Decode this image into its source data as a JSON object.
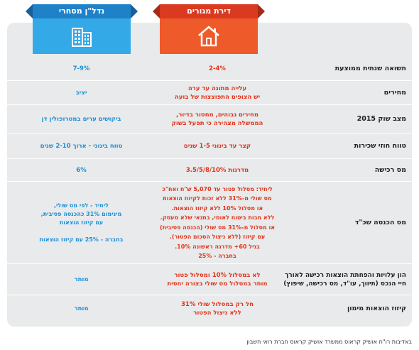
{
  "columns": {
    "residential": {
      "title": "דירת מגורים",
      "icon": "house-icon",
      "color": "#ef5a2a"
    },
    "commercial": {
      "title": "נדל\"ן מסחרי",
      "icon": "office-building-icon",
      "color": "#33a9e8"
    }
  },
  "rows": [
    {
      "label": "תשואה שנתית ממוצעת",
      "residential": "2-4%",
      "commercial": "7-9%"
    },
    {
      "label": "מחירים",
      "residential": "עלייה מתונה עד ערה\nיש הצופים התפוצצות של בועה",
      "commercial": "יציב"
    },
    {
      "label": "מצב שוק 2015",
      "residential": "מחירים גבוהים, מחסור בדיור,\nהממשלה מצהירה כי תפעל בשוק",
      "commercial": "ביקושים ערים במטרופולין דן"
    },
    {
      "label": "טווח חוזי שכירות",
      "residential": "קצר עד בינוני 1-5 שנים",
      "commercial": "טווח בינוני - ארוך 2-10 שנים"
    },
    {
      "label": "מס רכישה",
      "residential": "מדרגות 3.5/5/8/10%",
      "commercial": "6%"
    },
    {
      "label": "מס הכנסה שכ\"ד",
      "residential": "ליחיד: מסלול פטור עד 5,070 ש\"ח ואח\"כ\nמס שולי מ-31% ללא זכות לקיזוז הוצאות\nאו מסלול 10% ללא קיזוז הוצאות.\nללא חבות ביטוח לאומי, בתנאי שלא מעסק.\nאו מסלול מ-31% מס שולי (הכנסה פסיבית)\nעם קיזוז (ללא ניצול הסכום הפטור).\nבגיל 60+ מדרגה ראשונה 10%.\nבחברה - 25%",
      "commercial": "ליחיד - לפי מס שולי,\nמינימום 31% כהכנסה פסיבית,\nעם קיזוז הוצאות\n\nבחברה - 25% עם קיזוז הוצאות"
    },
    {
      "label": "הון עלויות והפחתת הוצאות רכישה לאורך\nחיי הנכס (תיווך, עו\"ד, מס רכישה, שיפוץ)",
      "residential": "לא במסלול 10% ומסלול פטור\nמותר במסלול מס שולי בצורה יחסית",
      "commercial": "מותר"
    },
    {
      "label": "קיזוז הוצאות מימון",
      "residential": "חל רק במסלול שולי 31%\nללא ניצול הפטור",
      "commercial": "מותר"
    }
  ],
  "footer": "באדיבות רו\"ח אושיק קראוס ממשרד אושיק קראוס חברת רואי חשבון"
}
